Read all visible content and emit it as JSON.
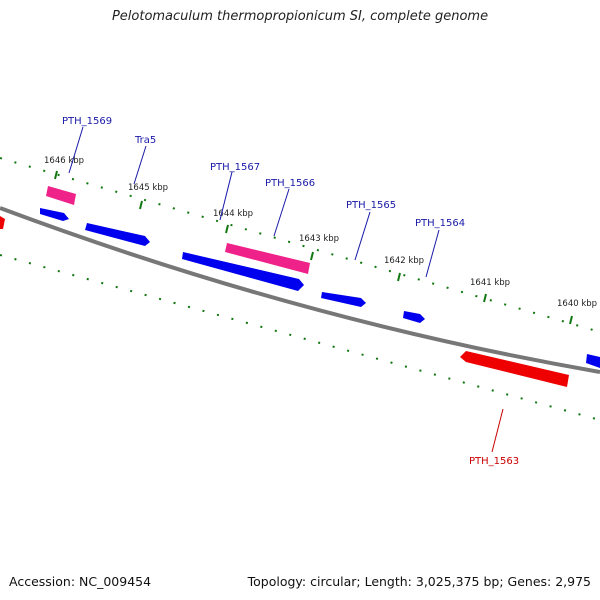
{
  "title": "Pelotomaculum thermopropionicum SI, complete genome",
  "accession": "Accession: NC_009454",
  "topology": "Topology: circular; Length: 3,025,375 bp; Genes: 2,975",
  "ticks": [
    {
      "label": "1646 kbp"
    },
    {
      "label": "1645 kbp"
    },
    {
      "label": "1644 kbp"
    },
    {
      "label": "1643 kbp"
    },
    {
      "label": "1642 kbp"
    },
    {
      "label": "1641 kbp"
    },
    {
      "label": "1640 kbp"
    }
  ],
  "genes": [
    {
      "label": "PTH_1569",
      "color": "#1a1aa8"
    },
    {
      "label": "Tra5",
      "color": "#1a1aa8"
    },
    {
      "label": "PTH_1567",
      "color": "#1a1aa8"
    },
    {
      "label": "PTH_1566",
      "color": "#1a1aa8"
    },
    {
      "label": "PTH_1565",
      "color": "#1a1aa8"
    },
    {
      "label": "PTH_1564",
      "color": "#1a1aa8"
    },
    {
      "label": "PTH_1563",
      "color": "#cc0000"
    }
  ],
  "colors": {
    "forward_gene": "#0000ee",
    "rna_gene": "#ee2288",
    "reverse_gene": "#ee0000",
    "backbone": "#777777",
    "tick": "#117711"
  }
}
